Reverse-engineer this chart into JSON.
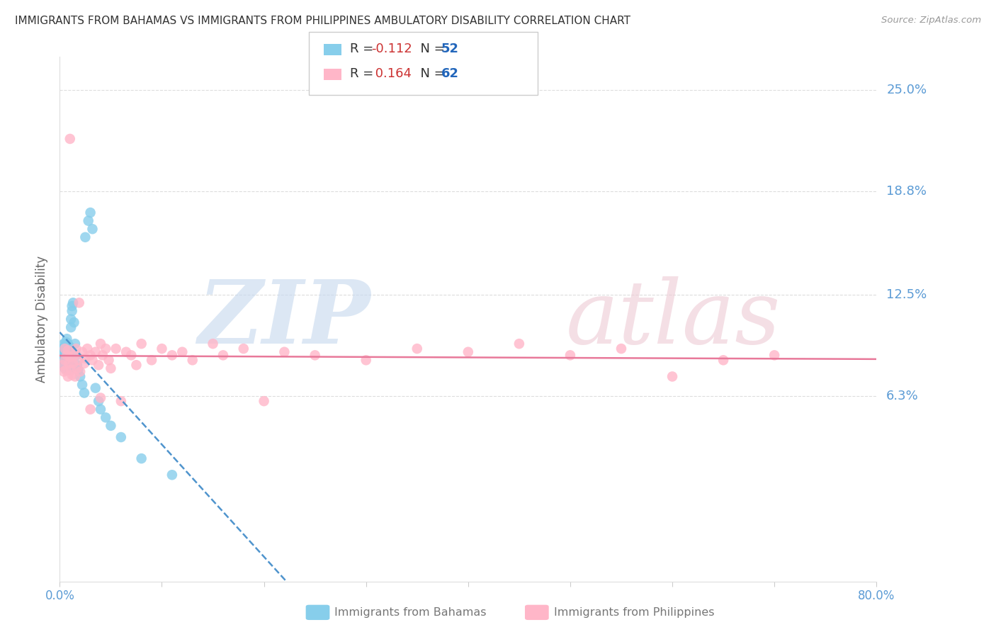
{
  "title": "IMMIGRANTS FROM BAHAMAS VS IMMIGRANTS FROM PHILIPPINES AMBULATORY DISABILITY CORRELATION CHART",
  "source": "Source: ZipAtlas.com",
  "ylabel": "Ambulatory Disability",
  "ytick_labels": [
    "25.0%",
    "18.8%",
    "12.5%",
    "6.3%"
  ],
  "ytick_values": [
    0.25,
    0.188,
    0.125,
    0.063
  ],
  "xmin": 0.0,
  "xmax": 0.8,
  "ymin": -0.05,
  "ymax": 0.27,
  "legend_r_bahamas": "-0.112",
  "legend_n_bahamas": "52",
  "legend_r_philippines": "0.164",
  "legend_n_philippines": "62",
  "color_bahamas": "#87CEEB",
  "color_philippines": "#FFB6C8",
  "trendline_bahamas_color": "#4F94CD",
  "trendline_philippines_color": "#E8799A",
  "background_color": "#FFFFFF",
  "grid_color": "#DDDDDD",
  "title_color": "#333333",
  "axis_label_color": "#5B9BD5",
  "watermark_zip": "ZIP",
  "watermark_atlas": "atlas",
  "bahamas_x": [
    0.002,
    0.003,
    0.003,
    0.004,
    0.004,
    0.004,
    0.005,
    0.005,
    0.005,
    0.005,
    0.006,
    0.006,
    0.006,
    0.006,
    0.007,
    0.007,
    0.007,
    0.008,
    0.008,
    0.008,
    0.009,
    0.009,
    0.009,
    0.01,
    0.01,
    0.01,
    0.01,
    0.011,
    0.011,
    0.012,
    0.012,
    0.013,
    0.014,
    0.015,
    0.016,
    0.017,
    0.018,
    0.02,
    0.022,
    0.024,
    0.025,
    0.028,
    0.03,
    0.032,
    0.035,
    0.038,
    0.04,
    0.045,
    0.05,
    0.06,
    0.08,
    0.11
  ],
  "bahamas_y": [
    0.09,
    0.085,
    0.092,
    0.088,
    0.095,
    0.082,
    0.091,
    0.087,
    0.093,
    0.08,
    0.096,
    0.083,
    0.089,
    0.094,
    0.086,
    0.092,
    0.098,
    0.085,
    0.09,
    0.095,
    0.088,
    0.084,
    0.091,
    0.087,
    0.082,
    0.093,
    0.079,
    0.105,
    0.11,
    0.115,
    0.118,
    0.12,
    0.108,
    0.095,
    0.088,
    0.082,
    0.079,
    0.075,
    0.07,
    0.065,
    0.16,
    0.17,
    0.175,
    0.165,
    0.068,
    0.06,
    0.055,
    0.05,
    0.045,
    0.038,
    0.025,
    0.015
  ],
  "philippines_x": [
    0.003,
    0.004,
    0.005,
    0.005,
    0.006,
    0.007,
    0.008,
    0.008,
    0.009,
    0.01,
    0.01,
    0.011,
    0.012,
    0.013,
    0.014,
    0.015,
    0.016,
    0.017,
    0.018,
    0.019,
    0.02,
    0.022,
    0.024,
    0.025,
    0.027,
    0.03,
    0.032,
    0.035,
    0.038,
    0.04,
    0.042,
    0.045,
    0.048,
    0.05,
    0.055,
    0.06,
    0.065,
    0.07,
    0.075,
    0.08,
    0.09,
    0.1,
    0.11,
    0.12,
    0.13,
    0.15,
    0.16,
    0.18,
    0.2,
    0.22,
    0.25,
    0.3,
    0.35,
    0.4,
    0.45,
    0.5,
    0.55,
    0.6,
    0.65,
    0.7,
    0.03,
    0.04
  ],
  "philippines_y": [
    0.082,
    0.078,
    0.085,
    0.092,
    0.079,
    0.088,
    0.075,
    0.091,
    0.083,
    0.087,
    0.22,
    0.079,
    0.076,
    0.083,
    0.088,
    0.075,
    0.092,
    0.08,
    0.085,
    0.12,
    0.078,
    0.09,
    0.083,
    0.086,
    0.092,
    0.088,
    0.085,
    0.09,
    0.082,
    0.095,
    0.088,
    0.092,
    0.085,
    0.08,
    0.092,
    0.06,
    0.09,
    0.088,
    0.082,
    0.095,
    0.085,
    0.092,
    0.088,
    0.09,
    0.085,
    0.095,
    0.088,
    0.092,
    0.06,
    0.09,
    0.088,
    0.085,
    0.092,
    0.09,
    0.095,
    0.088,
    0.092,
    0.075,
    0.085,
    0.088,
    0.055,
    0.062
  ]
}
